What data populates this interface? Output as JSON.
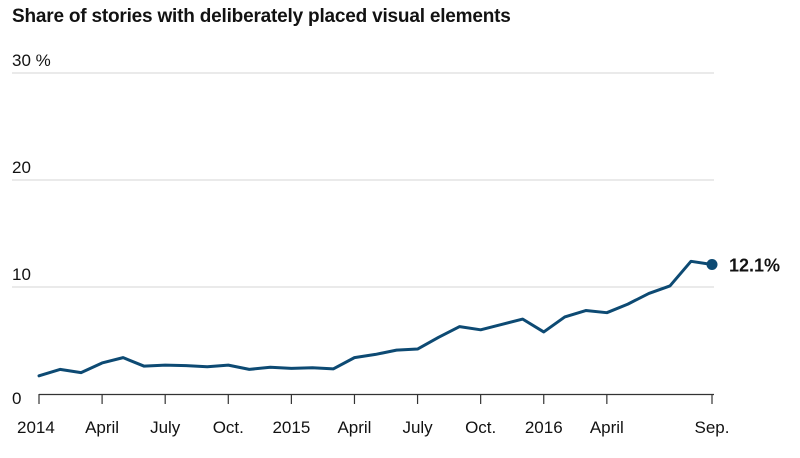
{
  "chart_data": {
    "type": "line",
    "title": "Share of stories with deliberately placed visual elements",
    "xlabel": "",
    "ylabel": "",
    "ylim": [
      0,
      30
    ],
    "y_ticks": [
      {
        "value": 0,
        "label": "0"
      },
      {
        "value": 10,
        "label": "10"
      },
      {
        "value": 20,
        "label": "20"
      },
      {
        "value": 30,
        "label": "30 %"
      }
    ],
    "x_ticks": [
      {
        "index": 0,
        "label": "2014"
      },
      {
        "index": 3,
        "label": "April"
      },
      {
        "index": 6,
        "label": "July"
      },
      {
        "index": 9,
        "label": "Oct."
      },
      {
        "index": 12,
        "label": "2015"
      },
      {
        "index": 15,
        "label": "April"
      },
      {
        "index": 18,
        "label": "July"
      },
      {
        "index": 21,
        "label": "Oct."
      },
      {
        "index": 24,
        "label": "2016"
      },
      {
        "index": 27,
        "label": "April"
      },
      {
        "index": 32,
        "label": "Sep."
      }
    ],
    "series": [
      {
        "name": "Share of stories",
        "color": "#0d4a73",
        "values": [
          1.7,
          2.3,
          2.0,
          2.9,
          3.4,
          2.6,
          2.7,
          2.65,
          2.55,
          2.7,
          2.3,
          2.5,
          2.4,
          2.45,
          2.35,
          3.4,
          3.7,
          4.1,
          4.2,
          5.3,
          6.3,
          6.0,
          6.5,
          7.0,
          5.8,
          7.2,
          7.8,
          7.6,
          8.4,
          9.4,
          10.1,
          12.4,
          12.1
        ]
      }
    ],
    "end_label": {
      "text": "12.1%",
      "value": 12.1
    }
  }
}
